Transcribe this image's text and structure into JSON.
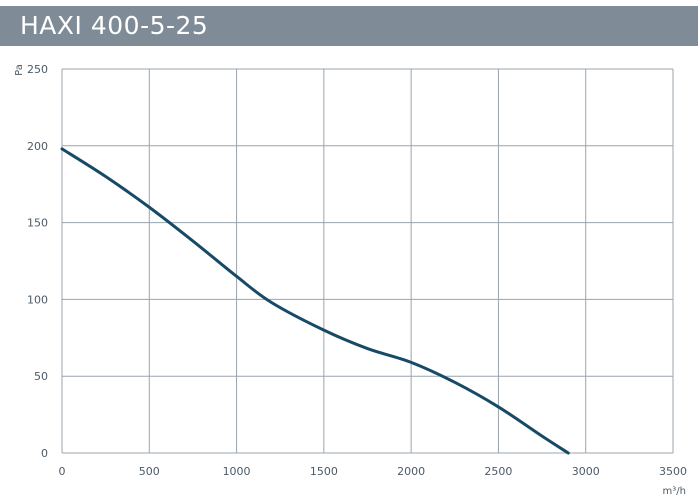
{
  "chart_data": {
    "type": "line",
    "title": "HAXI 400-5-25",
    "xlabel": "m³/h",
    "ylabel": "Pa",
    "xlim": [
      0,
      3500
    ],
    "ylim": [
      0,
      250
    ],
    "x_ticks": [
      "0",
      "500",
      "1000",
      "1500",
      "2000",
      "2500",
      "3000",
      "3500"
    ],
    "y_ticks": [
      "250",
      "200",
      "150",
      "100",
      "50",
      "0"
    ],
    "grid": true,
    "series": [
      {
        "color": "#174a66",
        "x": [
          0,
          250,
          500,
          750,
          1000,
          1200,
          1500,
          1750,
          2000,
          2250,
          2500,
          2750,
          2900
        ],
        "y": [
          198,
          180,
          160,
          138,
          115,
          98,
          80,
          68,
          59,
          46,
          30,
          11,
          0
        ]
      }
    ]
  }
}
